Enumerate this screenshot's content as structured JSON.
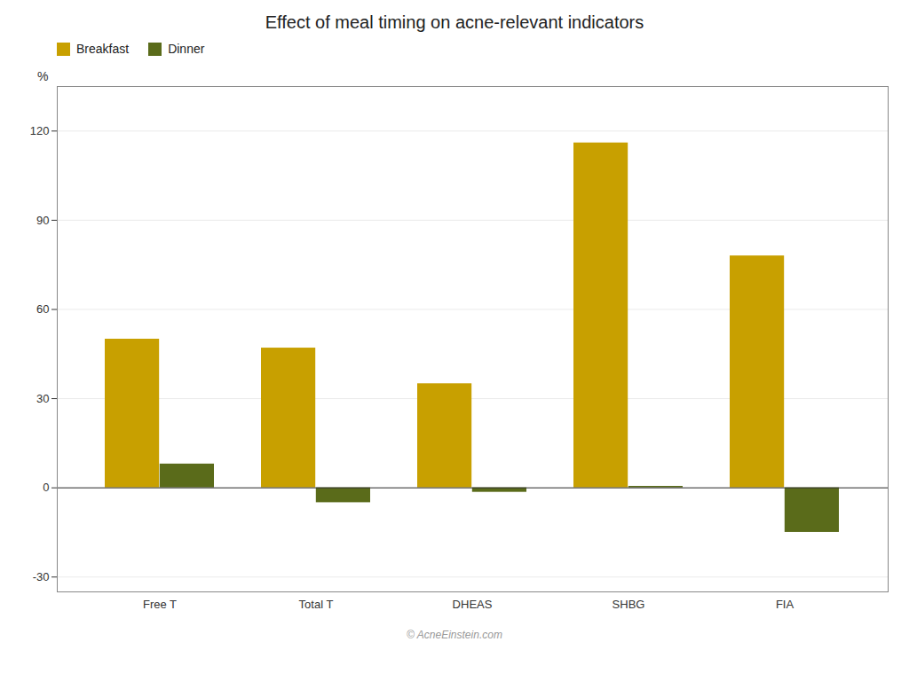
{
  "chart_data": {
    "type": "bar",
    "title": "Effect of meal timing on acne-relevant indicators",
    "ylabel": "%",
    "categories": [
      "Free T",
      "Total T",
      "DHEAS",
      "SHBG",
      "FIA"
    ],
    "series": [
      {
        "name": "Breakfast",
        "color": "#C8A000",
        "values": [
          50,
          47,
          35,
          116,
          78
        ]
      },
      {
        "name": "Dinner",
        "color": "#5A6B1A",
        "values": [
          8,
          -5,
          -1.5,
          0.5,
          -15
        ]
      }
    ],
    "ylim": [
      -35,
      135
    ],
    "yticks": [
      -30,
      0,
      30,
      60,
      90,
      120
    ],
    "grid": true,
    "legend": "upper left",
    "annotations": [
      {
        "text": "© AcneEinstein.com"
      }
    ]
  }
}
